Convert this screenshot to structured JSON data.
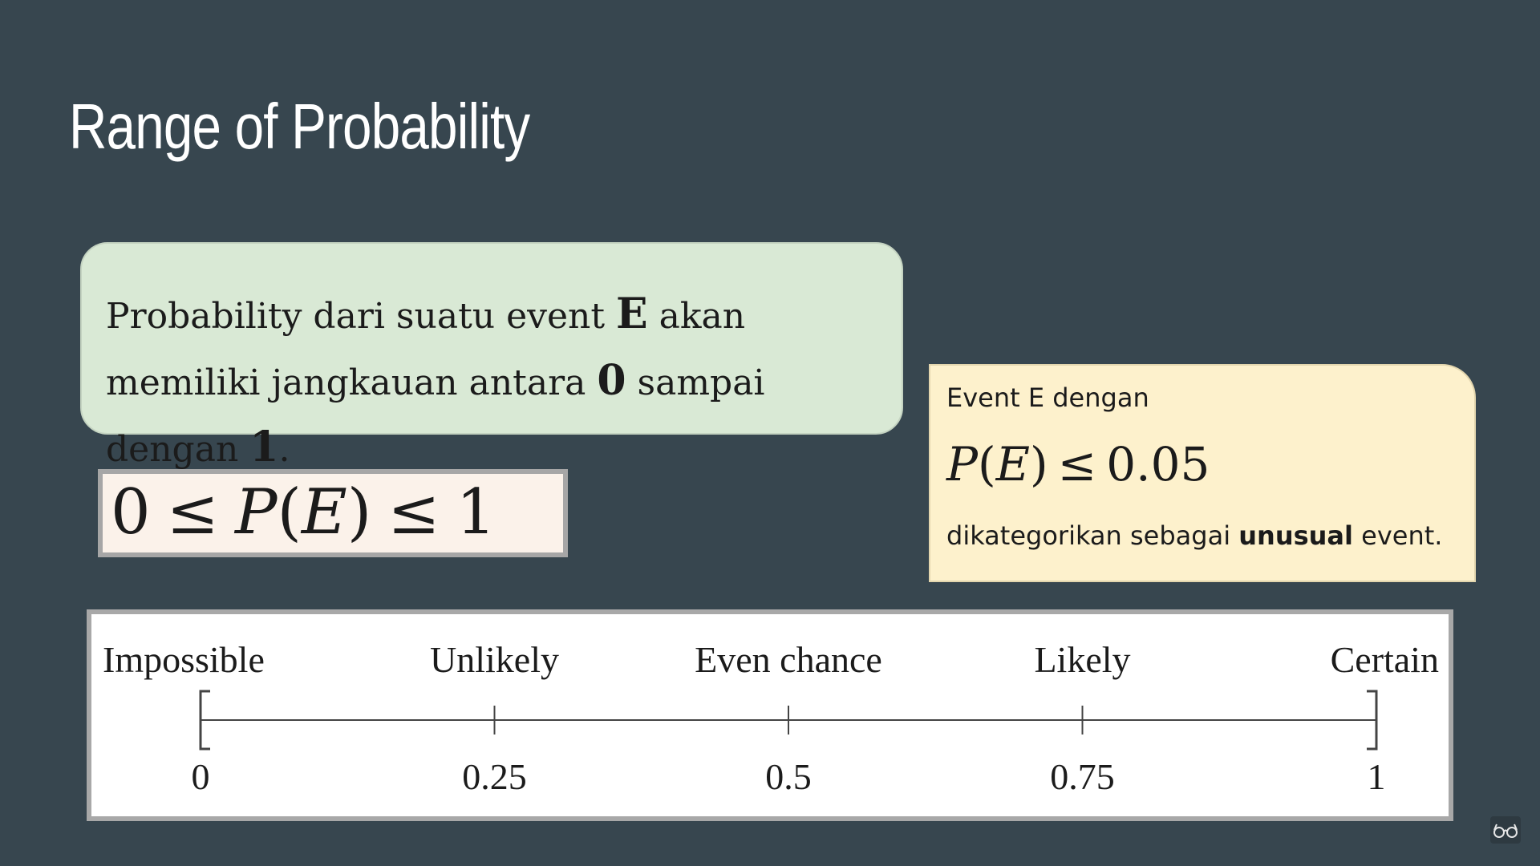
{
  "slide": {
    "title": "Range of Probability"
  },
  "definition": {
    "part1": "Probability dari suatu event ",
    "event": "E",
    "part2": " akan memiliki jangkauan antara ",
    "low": "0",
    "part3": " sampai dengan ",
    "high": "1",
    "part4": "."
  },
  "formula": {
    "left": "0",
    "op1": "≤",
    "p": "P",
    "open": "(",
    "e": "E",
    "close": ")",
    "op2": "≤",
    "right": "1"
  },
  "note": {
    "line1": "Event E dengan",
    "formula": {
      "p": "P",
      "open": "(",
      "e": "E",
      "close": ")",
      "op": "≤",
      "value": "0.05"
    },
    "line3_part1": "dikategorikan sebagai ",
    "line3_bold": "unusual",
    "line3_part2": " event."
  },
  "scale": {
    "min": 0,
    "max": 1,
    "points": [
      {
        "value": 0,
        "label": "Impossible",
        "tick_label": "0"
      },
      {
        "value": 0.25,
        "label": "Unlikely",
        "tick_label": "0.25"
      },
      {
        "value": 0.5,
        "label": "Even chance",
        "tick_label": "0.5"
      },
      {
        "value": 0.75,
        "label": "Likely",
        "tick_label": "0.75"
      },
      {
        "value": 1,
        "label": "Certain",
        "tick_label": "1"
      }
    ]
  },
  "icons": {
    "corner": "glasses-icon"
  }
}
